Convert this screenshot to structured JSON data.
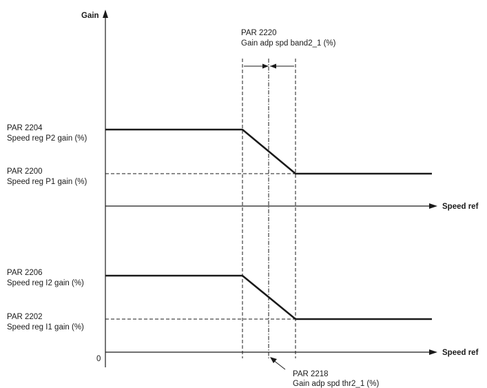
{
  "axes": {
    "y_label": "Gain",
    "x_label_top": "Speed ref",
    "x_label_bottom": "Speed ref",
    "origin_label": "0"
  },
  "labels": {
    "par2220_code": "PAR 2220",
    "par2220_name": "Gain adp spd band2_1 (%)",
    "par2204_code": "PAR 2204",
    "par2204_name": "Speed reg P2 gain (%)",
    "par2200_code": "PAR 2200",
    "par2200_name": "Speed reg P1 gain (%)",
    "par2206_code": "PAR 2206",
    "par2206_name": "Speed reg I2 gain (%)",
    "par2202_code": "PAR 2202",
    "par2202_name": "Speed reg I1 gain (%)",
    "par2218_code": "PAR 2218",
    "par2218_name": "Gain adp spd thr2_1 (%)"
  }
}
